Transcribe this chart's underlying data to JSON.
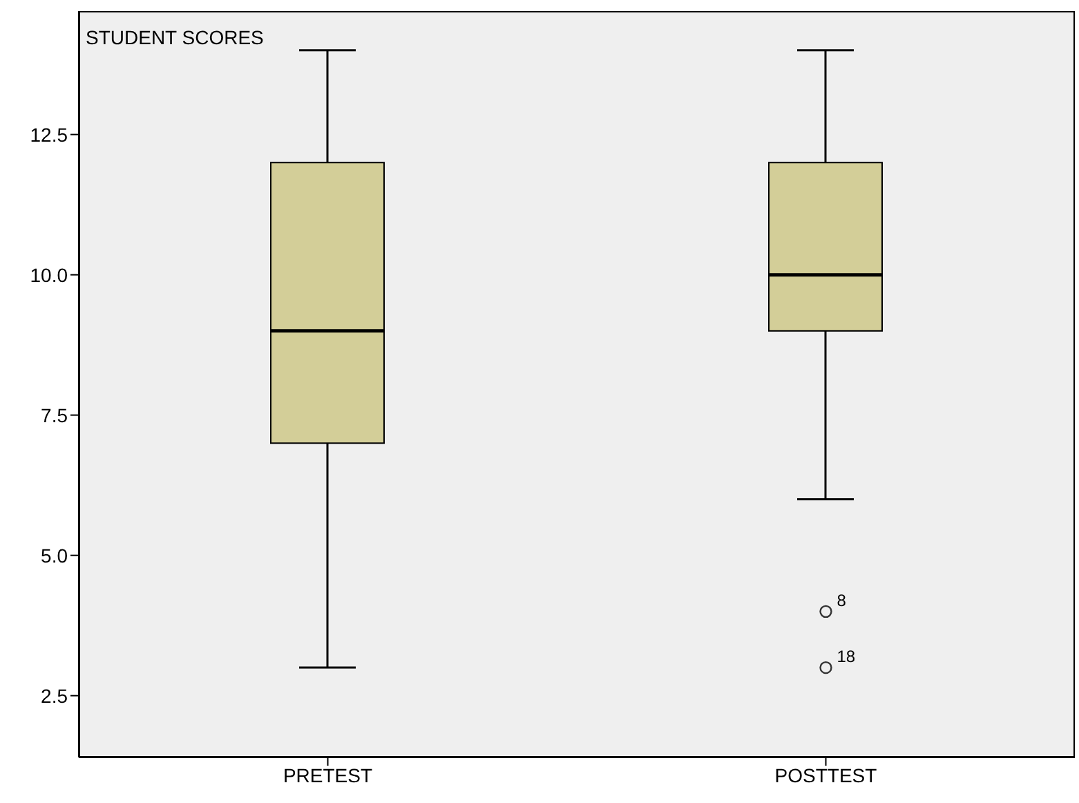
{
  "chart_data": {
    "type": "box",
    "title": "STUDENT SCORES",
    "categories": [
      "PRETEST",
      "POSTTEST"
    ],
    "color": "#d3ce98",
    "boxes": [
      {
        "low": 3,
        "q1": 7,
        "median": 9,
        "q3": 12,
        "high": 14
      },
      {
        "low": 6,
        "q1": 9,
        "median": 10,
        "q3": 12,
        "high": 14,
        "outliers": [
          4,
          3
        ]
      }
    ],
    "ylim": [
      1.4,
      14.7
    ],
    "yticks": [
      2.5,
      {
        "value": 5,
        "label": "5.0"
      },
      7.5,
      {
        "value": 10,
        "label": "10.0"
      },
      12.5
    ],
    "annotations": [
      "8",
      "18"
    ],
    "grid": false
  }
}
